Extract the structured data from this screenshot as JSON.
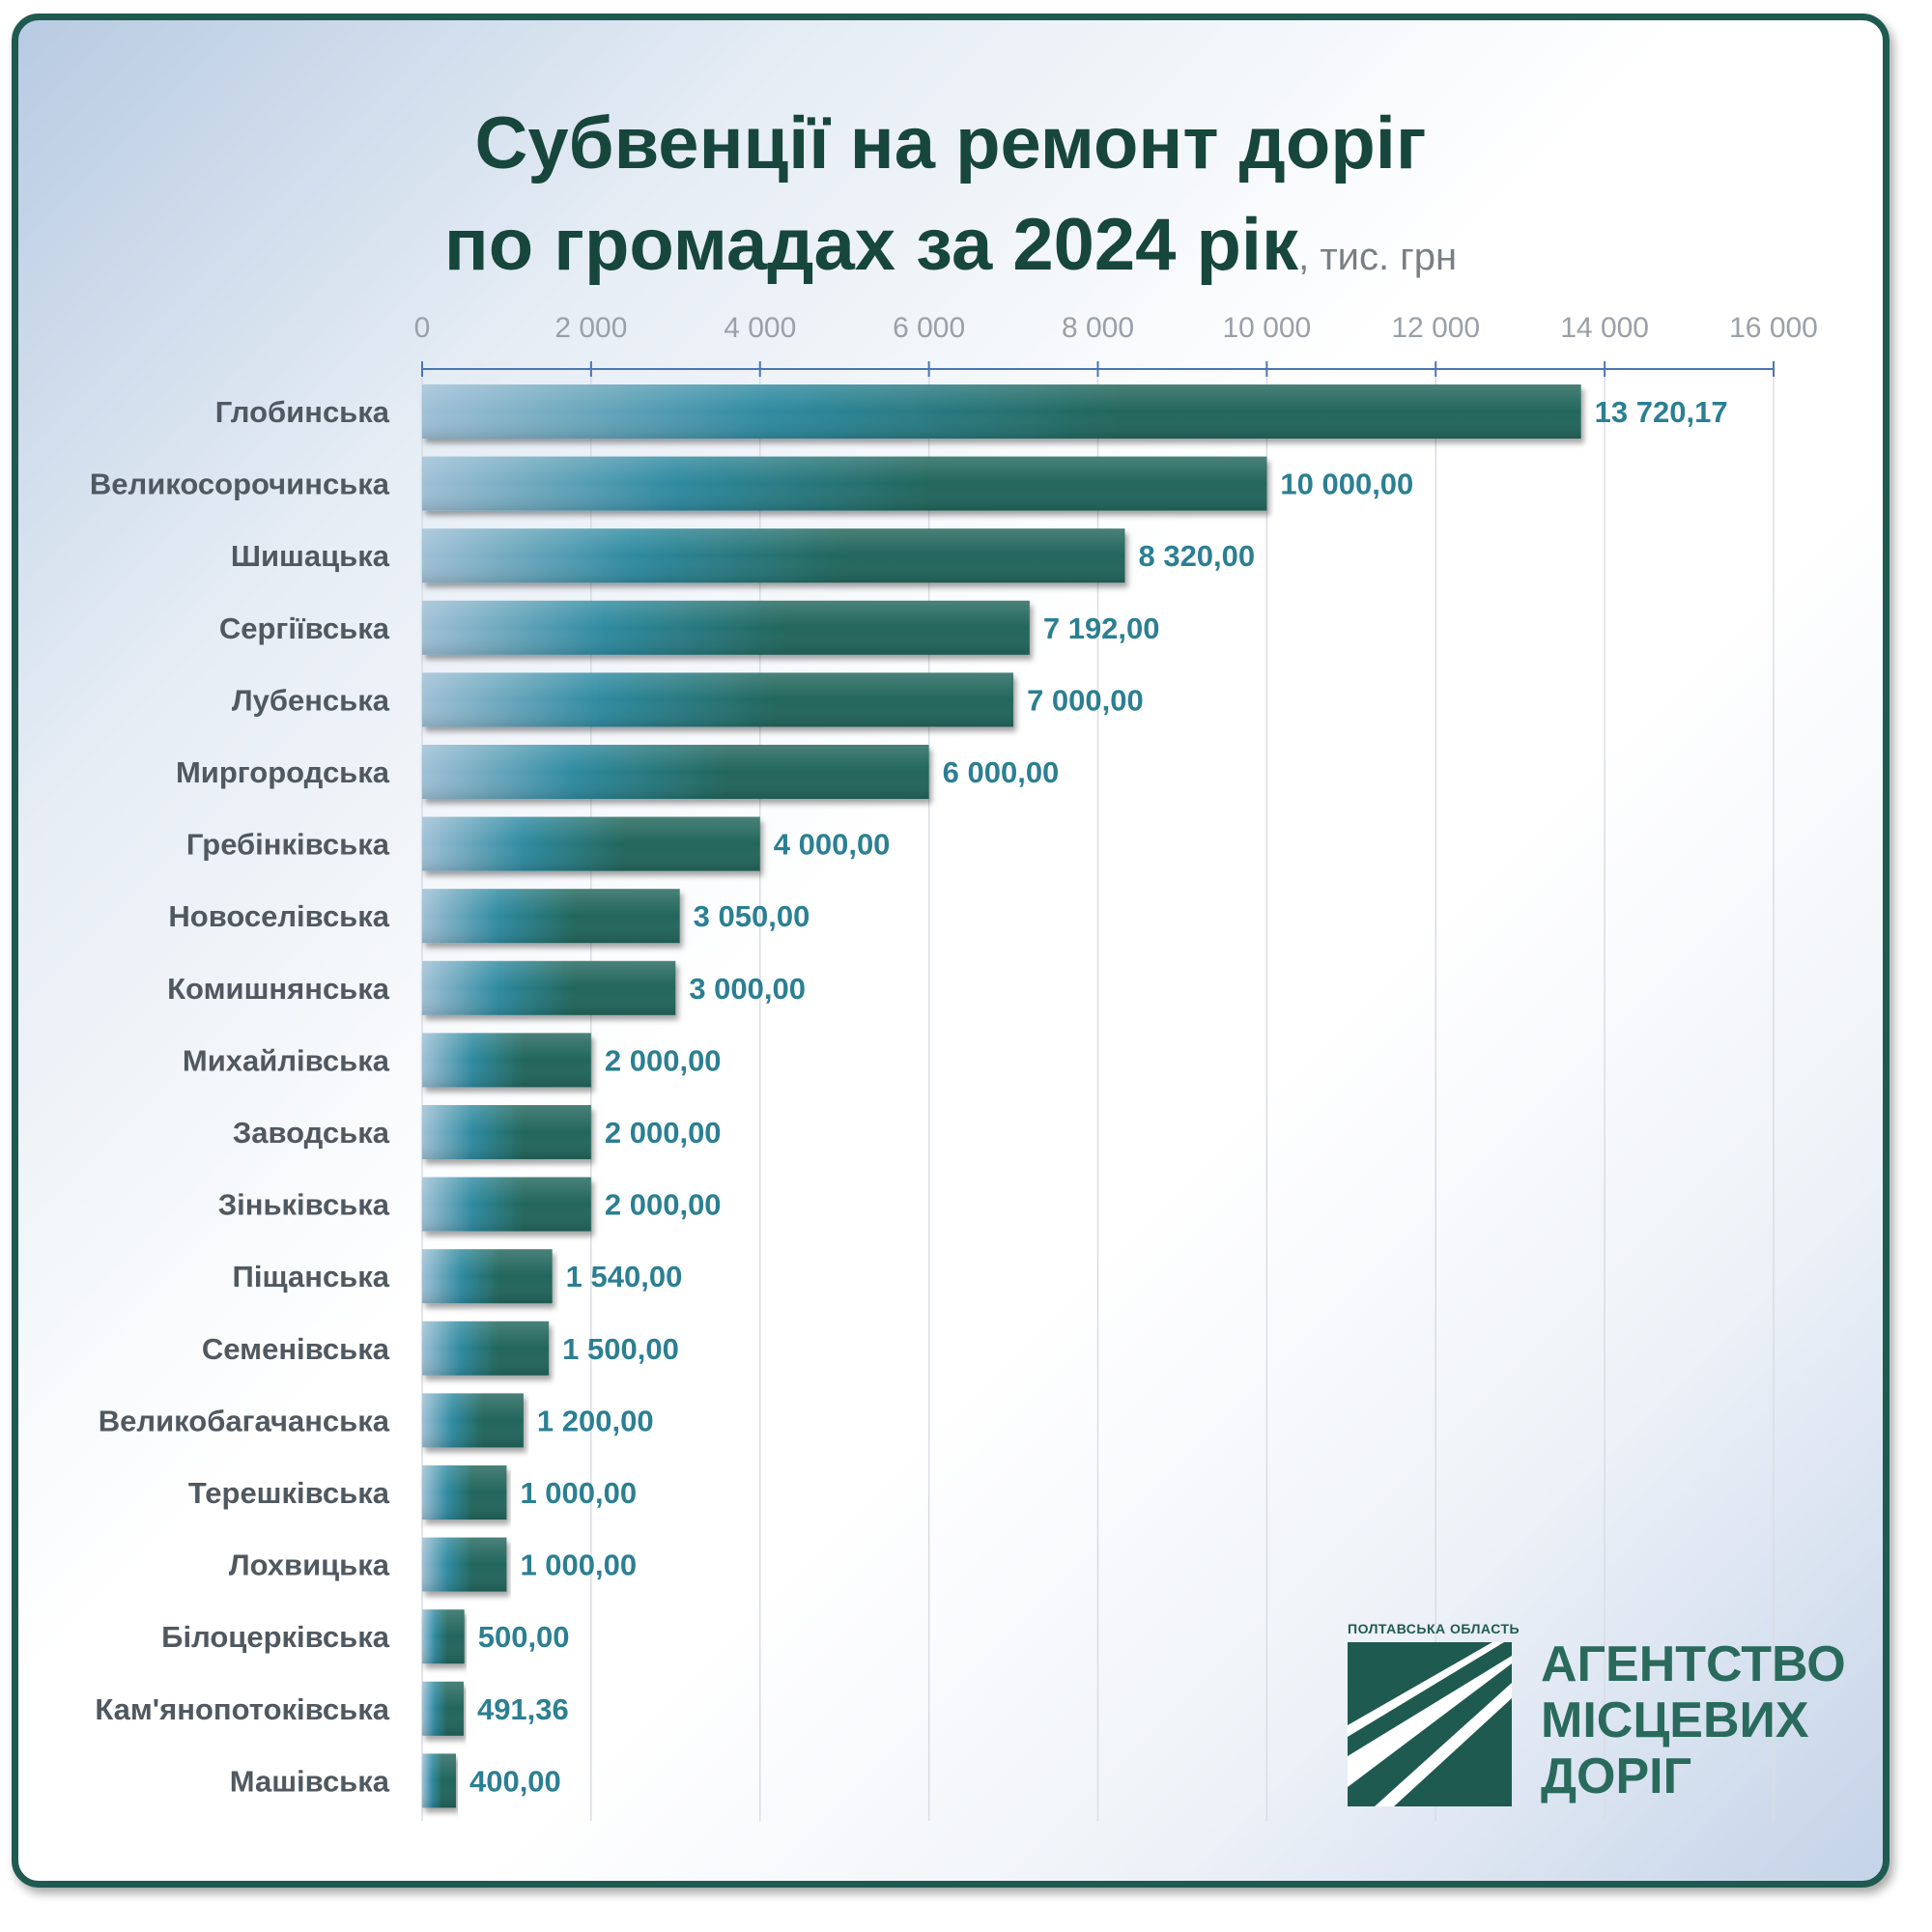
{
  "title": {
    "line1": "Субвенції на ремонт доріг",
    "line2": "по громадах за 2024 рік",
    "unit": ", тис. грн"
  },
  "logo": {
    "region": "ПОЛТАВСЬКА ОБЛАСТЬ",
    "line1": "АГЕНТСТВО",
    "line2": "МІСЦЕВИХ",
    "line3": "ДОРІГ",
    "color": "#1f5a50"
  },
  "colors": {
    "bar_dark": "#22665b",
    "bar_mid": "#2e8aa0",
    "bar_light": "#9fc0d6",
    "value_label": "#2b7f93",
    "axis": "#4a76b0"
  },
  "chart_data": {
    "type": "bar",
    "orientation": "horizontal",
    "categories": [
      "Глобинська",
      "Великосорочинська",
      "Шишацька",
      "Сергіївська",
      "Лубенська",
      "Миргородська",
      "Гребінківська",
      "Новоселівська",
      "Комишнянська",
      "Михайлівська",
      "Заводська",
      "Зіньківська",
      "Піщанська",
      "Семенівська",
      "Великобагачанська",
      "Терешківська",
      "Лохвицька",
      "Білоцерківська",
      "Кам'янопотоківська",
      "Машівська"
    ],
    "values": [
      13720.17,
      10000,
      8320,
      7192,
      7000,
      6000,
      4000,
      3050,
      3000,
      2000,
      2000,
      2000,
      1540,
      1500,
      1200,
      1000,
      1000,
      500,
      491.36,
      400
    ],
    "value_labels": [
      "13 720,17",
      "10 000,00",
      "8 320,00",
      "7 192,00",
      "7 000,00",
      "6 000,00",
      "4 000,00",
      "3 050,00",
      "3 000,00",
      "2 000,00",
      "2 000,00",
      "2 000,00",
      "1 540,00",
      "1 500,00",
      "1 200,00",
      "1 000,00",
      "1 000,00",
      "500,00",
      "491,36",
      "400,00"
    ],
    "xlim": [
      0,
      16000
    ],
    "x_ticks": [
      0,
      2000,
      4000,
      6000,
      8000,
      10000,
      12000,
      14000,
      16000
    ],
    "x_tick_labels": [
      "0",
      "2 000",
      "4 000",
      "6 000",
      "8 000",
      "10 000",
      "12 000",
      "14 000",
      "16 000"
    ],
    "axis_position": "top",
    "grid": true,
    "legend": false
  }
}
